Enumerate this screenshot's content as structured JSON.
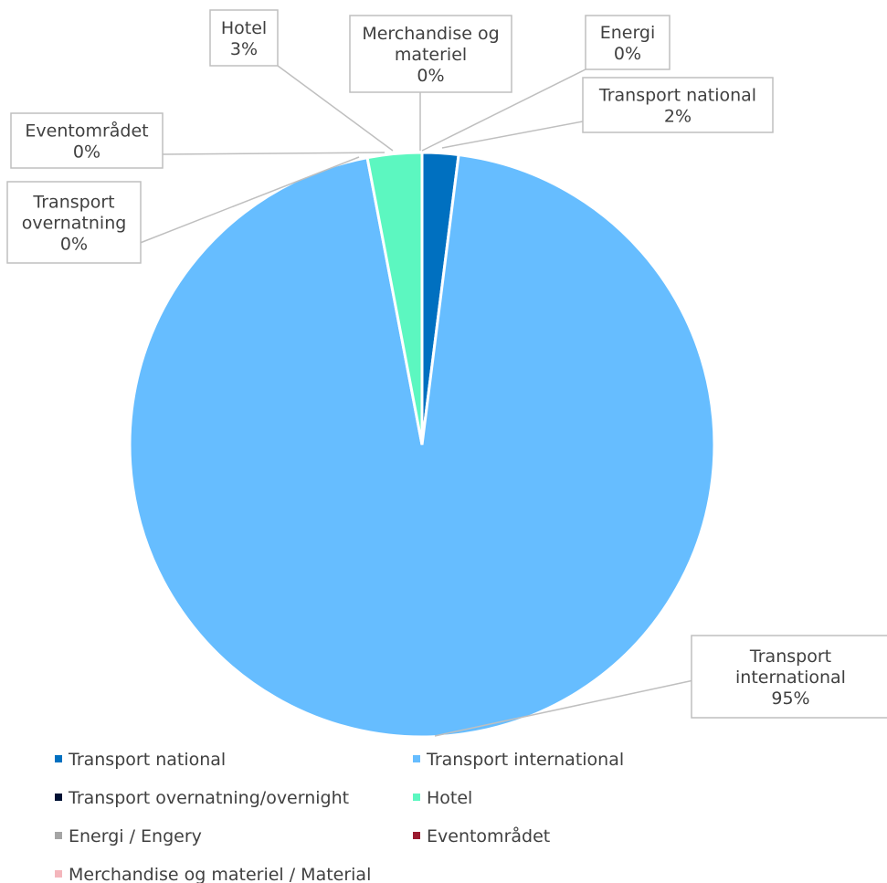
{
  "chart_data": {
    "type": "pie",
    "title": "",
    "slices": [
      {
        "key": "transport_national",
        "label_lines": [
          "Transport national",
          "2%"
        ],
        "value": 2,
        "color": "#0070C0"
      },
      {
        "key": "transport_international",
        "label_lines": [
          "Transport",
          "international",
          "95%"
        ],
        "value": 95,
        "color": "#66BDFF"
      },
      {
        "key": "transport_overnatning",
        "label_lines": [
          "Transport",
          "overnatning",
          "0%"
        ],
        "value": 0,
        "color": "#001133"
      },
      {
        "key": "hotel",
        "label_lines": [
          "Hotel",
          "3%"
        ],
        "value": 3,
        "color": "#5CF7C0"
      },
      {
        "key": "energi",
        "label_lines": [
          "Energi",
          "0%"
        ],
        "value": 0,
        "color": "#A5A5A5"
      },
      {
        "key": "eventomraadet",
        "label_lines": [
          "Eventområdet",
          "0%"
        ],
        "value": 0,
        "color": "#9B1B30"
      },
      {
        "key": "merchandise",
        "label_lines": [
          "Merchandise og",
          "materiel",
          "0%"
        ],
        "value": 0,
        "color": "#F4B6BC"
      }
    ],
    "legend": {
      "position": "bottom",
      "entries": [
        "Transport national",
        "Transport international",
        "Transport overnatning/overnight",
        "Hotel",
        "Energi / Engery",
        "Eventområdet",
        "Merchandise og materiel / Material"
      ]
    }
  }
}
